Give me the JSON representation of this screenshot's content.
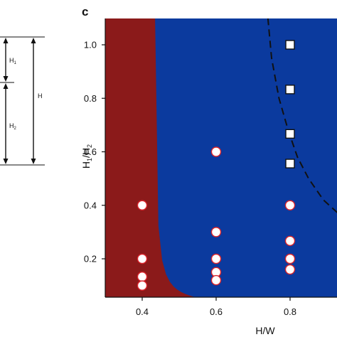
{
  "chart_data": {
    "type": "heatmap",
    "panel_label": "c",
    "xlabel": "H/W",
    "ylabel": "H1/H2",
    "xlim": [
      0.3,
      1.0
    ],
    "ylim": [
      0.05,
      1.1
    ],
    "x_ticks": [
      "0.4",
      "0.6",
      "0.8"
    ],
    "y_ticks": [
      "0.2",
      "0.4",
      "0.6",
      "0.8",
      "1.0"
    ],
    "x_tick_values": [
      0.4,
      0.6,
      0.8
    ],
    "y_tick_values": [
      0.2,
      0.4,
      0.6,
      0.8,
      1.0
    ],
    "grid": false,
    "colors": {
      "low": "#8b1a1a",
      "levels": [
        "#8b1a1a",
        "#b31d1d",
        "#e0221b",
        "#f04a1f",
        "#fb8a1f",
        "#f8c21c",
        "#e9e61a",
        "#b8e028",
        "#7fd65a",
        "#3fc3a8",
        "#19a3d8",
        "#1178cf",
        "#0f55b8",
        "#0b3a9e"
      ],
      "circle_fill": "#ffffff",
      "circle_stroke": "#d9232a",
      "square_fill": "#ffffff",
      "square_stroke": "#111111",
      "boundary": "#111111"
    },
    "series": [
      {
        "marker": "circle",
        "points": [
          [
            0.4,
            0.4
          ],
          [
            0.4,
            0.2
          ],
          [
            0.4,
            0.133
          ],
          [
            0.4,
            0.1
          ],
          [
            0.6,
            0.6
          ],
          [
            0.6,
            0.3
          ],
          [
            0.6,
            0.2
          ],
          [
            0.6,
            0.15
          ],
          [
            0.6,
            0.12
          ],
          [
            0.8,
            0.4
          ],
          [
            0.8,
            0.267
          ],
          [
            0.8,
            0.2
          ],
          [
            0.8,
            0.16
          ]
        ]
      },
      {
        "marker": "square",
        "points": [
          [
            0.8,
            1.0
          ],
          [
            0.8,
            0.833
          ],
          [
            0.8,
            0.667
          ],
          [
            0.8,
            0.556
          ]
        ]
      }
    ],
    "boundary_line": {
      "style": "dashed",
      "points": [
        [
          0.74,
          1.1
        ],
        [
          0.75,
          0.95
        ],
        [
          0.77,
          0.8
        ],
        [
          0.795,
          0.68
        ],
        [
          0.82,
          0.58
        ],
        [
          0.85,
          0.5
        ],
        [
          0.89,
          0.42
        ],
        [
          0.93,
          0.37
        ],
        [
          0.98,
          0.33
        ],
        [
          1.0,
          0.32
        ]
      ]
    }
  },
  "schematic": {
    "h1_label": "H",
    "h1_sub": "1",
    "h2_label": "H",
    "h2_sub": "2",
    "h_label": "H"
  }
}
